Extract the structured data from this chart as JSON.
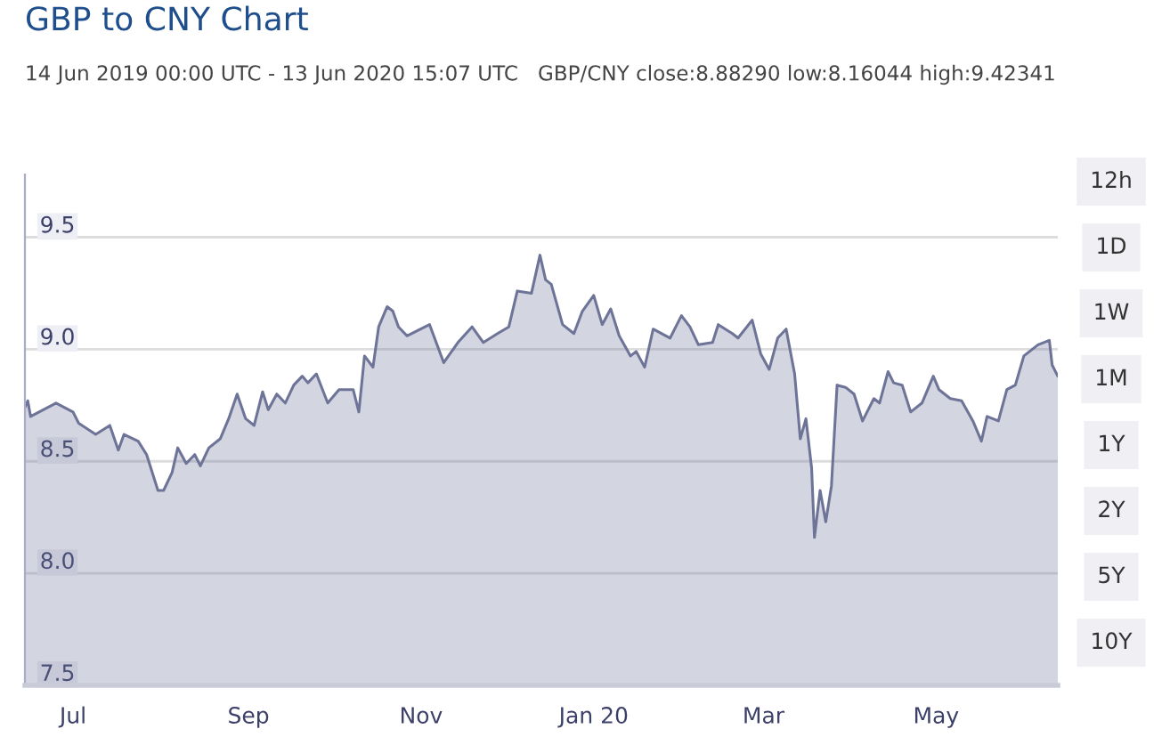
{
  "chart_data": {
    "type": "area",
    "title": "GBP to CNY Chart",
    "subtitle": "14 Jun 2019 00:00 UTC - 13 Jun 2020 15:07 UTC   GBP/CNY close:8.88290 low:8.16044 high:9.42341",
    "annotations": [
      "12h",
      "1D",
      "1W",
      "1M",
      "1Y",
      "2Y",
      "5Y",
      "10Y"
    ],
    "x": [
      "2019-06-14",
      "2019-06-15",
      "2019-06-16",
      "2019-06-25",
      "2019-07-01",
      "2019-07-03",
      "2019-07-09",
      "2019-07-14",
      "2019-07-17",
      "2019-07-19",
      "2019-07-24",
      "2019-07-27",
      "2019-07-31",
      "2019-08-02",
      "2019-08-05",
      "2019-08-07",
      "2019-08-10",
      "2019-08-13",
      "2019-08-15",
      "2019-08-18",
      "2019-08-22",
      "2019-08-25",
      "2019-08-28",
      "2019-08-31",
      "2019-09-03",
      "2019-09-06",
      "2019-09-08",
      "2019-09-11",
      "2019-09-14",
      "2019-09-17",
      "2019-09-20",
      "2019-09-22",
      "2019-09-25",
      "2019-09-29",
      "2019-10-03",
      "2019-10-08",
      "2019-10-10",
      "2019-10-12",
      "2019-10-15",
      "2019-10-17",
      "2019-10-20",
      "2019-10-22",
      "2019-10-24",
      "2019-10-27",
      "2019-11-04",
      "2019-11-09",
      "2019-11-14",
      "2019-11-19",
      "2019-11-23",
      "2019-11-28",
      "2019-12-02",
      "2019-12-05",
      "2019-12-10",
      "2019-12-13",
      "2019-12-15",
      "2019-12-17",
      "2019-12-21",
      "2019-12-25",
      "2019-12-28",
      "2020-01-01",
      "2020-01-04",
      "2020-01-07",
      "2020-01-10",
      "2020-01-14",
      "2020-01-16",
      "2020-01-19",
      "2020-01-22",
      "2020-01-28",
      "2020-02-01",
      "2020-02-04",
      "2020-02-07",
      "2020-02-12",
      "2020-02-14",
      "2020-02-19",
      "2020-02-21",
      "2020-02-26",
      "2020-02-29",
      "2020-03-03",
      "2020-03-06",
      "2020-03-09",
      "2020-03-12",
      "2020-03-14",
      "2020-03-16",
      "2020-03-18",
      "2020-03-19",
      "2020-03-21",
      "2020-03-23",
      "2020-03-25",
      "2020-03-27",
      "2020-03-30",
      "2020-04-02",
      "2020-04-05",
      "2020-04-09",
      "2020-04-11",
      "2020-04-14",
      "2020-04-16",
      "2020-04-19",
      "2020-04-22",
      "2020-04-26",
      "2020-04-30",
      "2020-05-02",
      "2020-05-06",
      "2020-05-10",
      "2020-05-14",
      "2020-05-17",
      "2020-05-19",
      "2020-05-23",
      "2020-05-26",
      "2020-05-29",
      "2020-06-01",
      "2020-06-06",
      "2020-06-10",
      "2020-06-11",
      "2020-06-13"
    ],
    "series": [
      {
        "color": "#6e7498",
        "values": [
          8.74,
          8.77,
          8.7,
          8.76,
          8.72,
          8.67,
          8.62,
          8.66,
          8.55,
          8.62,
          8.59,
          8.53,
          8.37,
          8.37,
          8.45,
          8.56,
          8.49,
          8.53,
          8.48,
          8.56,
          8.6,
          8.69,
          8.8,
          8.69,
          8.66,
          8.81,
          8.73,
          8.8,
          8.76,
          8.84,
          8.88,
          8.85,
          8.89,
          8.76,
          8.82,
          8.82,
          8.72,
          8.97,
          8.92,
          9.1,
          9.19,
          9.17,
          9.1,
          9.06,
          9.11,
          8.94,
          9.03,
          9.1,
          9.03,
          9.07,
          9.1,
          9.26,
          9.25,
          9.42,
          9.31,
          9.29,
          9.11,
          9.07,
          9.17,
          9.24,
          9.11,
          9.18,
          9.06,
          8.97,
          8.99,
          8.92,
          9.09,
          9.05,
          9.15,
          9.1,
          9.02,
          9.03,
          9.11,
          9.07,
          9.05,
          9.13,
          8.98,
          8.91,
          9.05,
          9.09,
          8.89,
          8.6,
          8.69,
          8.47,
          8.16,
          8.37,
          8.23,
          8.39,
          8.84,
          8.83,
          8.8,
          8.68,
          8.78,
          8.76,
          8.9,
          8.85,
          8.84,
          8.72,
          8.76,
          8.88,
          8.82,
          8.78,
          8.77,
          8.68,
          8.59,
          8.7,
          8.68,
          8.82,
          8.84,
          8.97,
          9.02,
          9.04,
          8.93,
          8.88
        ]
      }
    ],
    "xlim": [
      "2019-06-14",
      "2020-06-13"
    ],
    "xticks": [
      {
        "value": "2019-07-01",
        "label": "Jul"
      },
      {
        "value": "2019-09-01",
        "label": "Sep"
      },
      {
        "value": "2019-11-01",
        "label": "Nov"
      },
      {
        "value": "2020-01-01",
        "label": "Jan 20"
      },
      {
        "value": "2020-03-01",
        "label": "Mar"
      },
      {
        "value": "2020-05-01",
        "label": "May"
      }
    ],
    "ylim": [
      7.5,
      9.78
    ],
    "yticks": [
      {
        "value": 7.5,
        "label": "7.5"
      },
      {
        "value": 8,
        "label": "8.0"
      },
      {
        "value": 8.5,
        "label": "8.5"
      },
      {
        "value": 9,
        "label": "9.0"
      },
      {
        "value": 9.5,
        "label": "9.5"
      }
    ],
    "grid": "y"
  }
}
